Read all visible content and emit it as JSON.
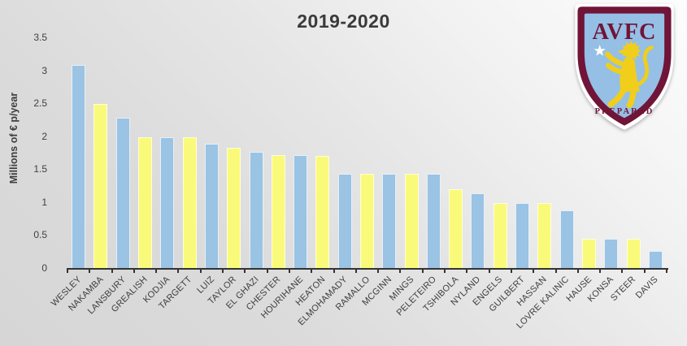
{
  "chart_data": {
    "type": "bar",
    "title": "2019-2020",
    "ylabel": "Millions of € p/year",
    "xlabel": "",
    "ylim": [
      0,
      3.5
    ],
    "yticks": [
      0,
      0.5,
      1,
      1.5,
      2,
      2.5,
      3,
      3.5
    ],
    "grid": false,
    "legend": null,
    "categories": [
      "WESLEY",
      "NAKAMBA",
      "LANSBURY",
      "GREALISH",
      "KODJIA",
      "TARGETT",
      "LUIZ",
      "TAYLOR",
      "EL GHAZI",
      "CHESTER",
      "HOURIHANE",
      "HEATON",
      "ELMOHAMADY",
      "RAMALLO",
      "MCGINN",
      "MINGS",
      "PELETEIRO",
      "TSHIBOLA",
      "NYLAND",
      "ENGELS",
      "GUILBERT",
      "HASSAN",
      "LOVRE KALINIC",
      "HAUSE",
      "KONSA",
      "STEER",
      "DAVIS"
    ],
    "values": [
      3.08,
      2.49,
      2.28,
      1.99,
      1.98,
      1.98,
      1.89,
      1.82,
      1.76,
      1.71,
      1.71,
      1.7,
      1.43,
      1.43,
      1.43,
      1.43,
      1.43,
      1.19,
      1.13,
      0.98,
      0.98,
      0.98,
      0.88,
      0.44,
      0.44,
      0.44,
      0.26
    ]
  },
  "logo": {
    "club_initials": "AVFC",
    "motto": "PREPARED"
  },
  "colors": {
    "bar_blue": "#9AC3E4",
    "bar_yellow": "#FAFA7A",
    "claret": "#701438",
    "villa_blue": "#95BFE5",
    "lion_gold": "#F0CE1B",
    "axis": "#333333",
    "text": "#404040"
  }
}
